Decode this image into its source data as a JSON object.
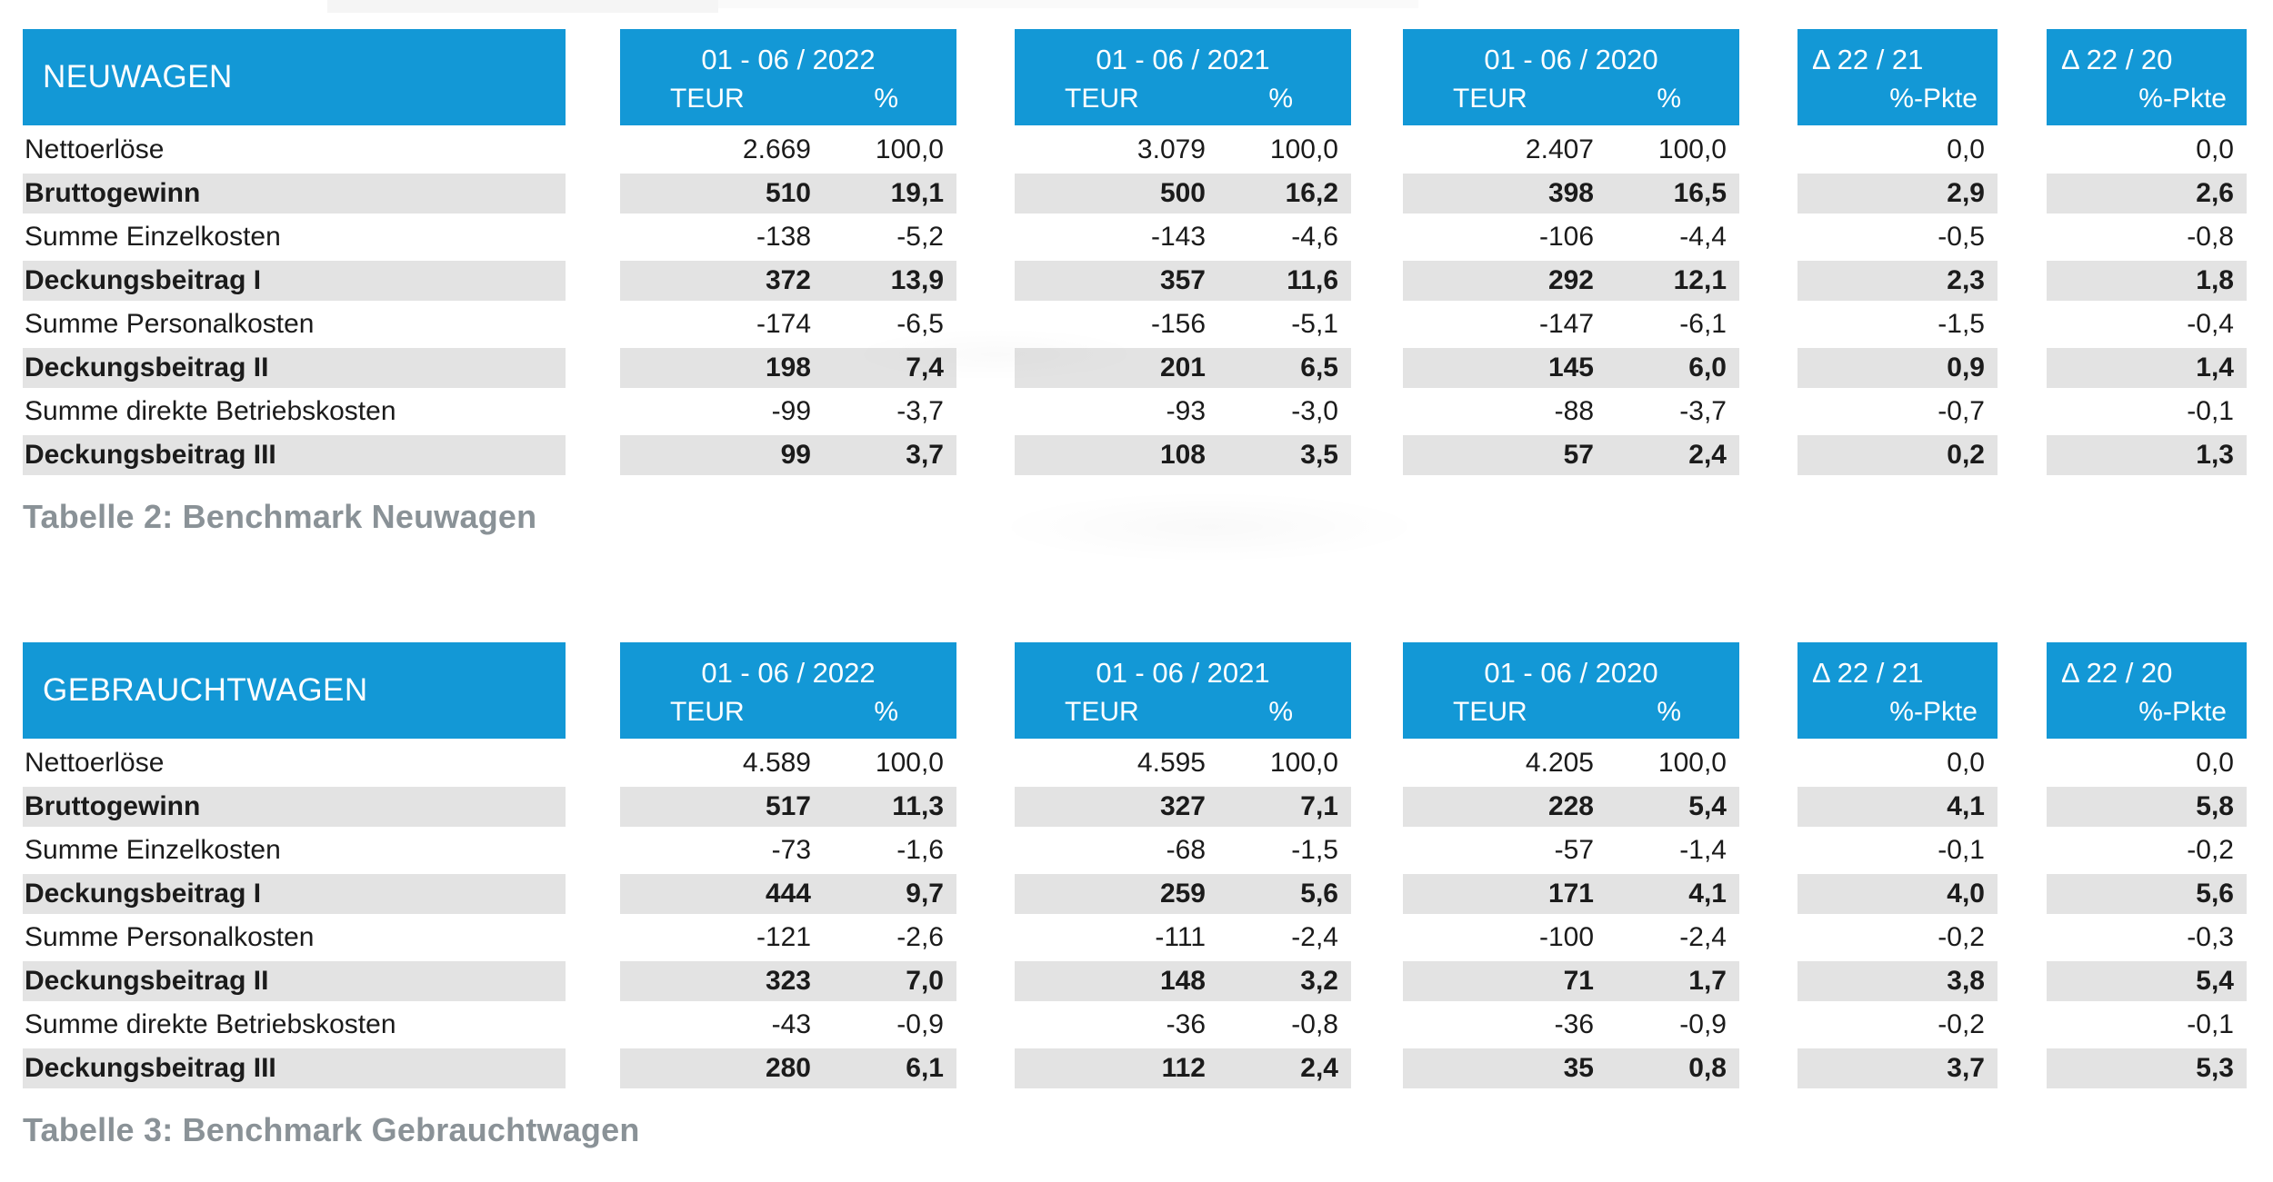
{
  "colors": {
    "accent": "#1398d6",
    "stripe": "#e3e3e3",
    "caption_text": "#8a9297",
    "body_text": "#1b1b1b"
  },
  "tables": [
    {
      "name": "NEUWAGEN",
      "caption": "Tabelle 2: Benchmark Neuwagen",
      "columns": [
        {
          "period": "01 - 06 / 2022",
          "units": [
            "TEUR",
            "%"
          ]
        },
        {
          "period": "01 - 06 / 2021",
          "units": [
            "TEUR",
            "%"
          ]
        },
        {
          "period": "01 - 06 / 2020",
          "units": [
            "TEUR",
            "%"
          ]
        },
        {
          "period": "Δ 22 / 21",
          "units": [
            "%-Pkte"
          ]
        },
        {
          "period": "Δ 22 / 20",
          "units": [
            "%-Pkte"
          ]
        }
      ],
      "rows": [
        {
          "label": "Nettoerlöse",
          "bold": false,
          "values": [
            "2.669",
            "100,0",
            "3.079",
            "100,0",
            "2.407",
            "100,0",
            "0,0",
            "0,0"
          ]
        },
        {
          "label": "Bruttogewinn",
          "bold": true,
          "values": [
            "510",
            "19,1",
            "500",
            "16,2",
            "398",
            "16,5",
            "2,9",
            "2,6"
          ]
        },
        {
          "label": "Summe Einzelkosten",
          "bold": false,
          "values": [
            "-138",
            "-5,2",
            "-143",
            "-4,6",
            "-106",
            "-4,4",
            "-0,5",
            "-0,8"
          ]
        },
        {
          "label": "Deckungsbeitrag I",
          "bold": true,
          "values": [
            "372",
            "13,9",
            "357",
            "11,6",
            "292",
            "12,1",
            "2,3",
            "1,8"
          ]
        },
        {
          "label": "Summe Personalkosten",
          "bold": false,
          "values": [
            "-174",
            "-6,5",
            "-156",
            "-5,1",
            "-147",
            "-6,1",
            "-1,5",
            "-0,4"
          ]
        },
        {
          "label": "Deckungsbeitrag II",
          "bold": true,
          "values": [
            "198",
            "7,4",
            "201",
            "6,5",
            "145",
            "6,0",
            "0,9",
            "1,4"
          ]
        },
        {
          "label": "Summe direkte Betriebskosten",
          "bold": false,
          "values": [
            "-99",
            "-3,7",
            "-93",
            "-3,0",
            "-88",
            "-3,7",
            "-0,7",
            "-0,1"
          ]
        },
        {
          "label": "Deckungsbeitrag III",
          "bold": true,
          "values": [
            "99",
            "3,7",
            "108",
            "3,5",
            "57",
            "2,4",
            "0,2",
            "1,3"
          ]
        }
      ]
    },
    {
      "name": "GEBRAUCHTWAGEN",
      "caption": "Tabelle 3: Benchmark Gebrauchtwagen",
      "columns": [
        {
          "period": "01 - 06 / 2022",
          "units": [
            "TEUR",
            "%"
          ]
        },
        {
          "period": "01 - 06 / 2021",
          "units": [
            "TEUR",
            "%"
          ]
        },
        {
          "period": "01 - 06 / 2020",
          "units": [
            "TEUR",
            "%"
          ]
        },
        {
          "period": "Δ 22 / 21",
          "units": [
            "%-Pkte"
          ]
        },
        {
          "period": "Δ 22 / 20",
          "units": [
            "%-Pkte"
          ]
        }
      ],
      "rows": [
        {
          "label": "Nettoerlöse",
          "bold": false,
          "values": [
            "4.589",
            "100,0",
            "4.595",
            "100,0",
            "4.205",
            "100,0",
            "0,0",
            "0,0"
          ]
        },
        {
          "label": "Bruttogewinn",
          "bold": true,
          "values": [
            "517",
            "11,3",
            "327",
            "7,1",
            "228",
            "5,4",
            "4,1",
            "5,8"
          ]
        },
        {
          "label": "Summe Einzelkosten",
          "bold": false,
          "values": [
            "-73",
            "-1,6",
            "-68",
            "-1,5",
            "-57",
            "-1,4",
            "-0,1",
            "-0,2"
          ]
        },
        {
          "label": "Deckungsbeitrag I",
          "bold": true,
          "values": [
            "444",
            "9,7",
            "259",
            "5,6",
            "171",
            "4,1",
            "4,0",
            "5,6"
          ]
        },
        {
          "label": "Summe Personalkosten",
          "bold": false,
          "values": [
            "-121",
            "-2,6",
            "-111",
            "-2,4",
            "-100",
            "-2,4",
            "-0,2",
            "-0,3"
          ]
        },
        {
          "label": "Deckungsbeitrag II",
          "bold": true,
          "values": [
            "323",
            "7,0",
            "148",
            "3,2",
            "71",
            "1,7",
            "3,8",
            "5,4"
          ]
        },
        {
          "label": "Summe direkte Betriebskosten",
          "bold": false,
          "values": [
            "-43",
            "-0,9",
            "-36",
            "-0,8",
            "-36",
            "-0,9",
            "-0,2",
            "-0,1"
          ]
        },
        {
          "label": "Deckungsbeitrag III",
          "bold": true,
          "values": [
            "280",
            "6,1",
            "112",
            "2,4",
            "35",
            "0,8",
            "3,7",
            "5,3"
          ]
        }
      ]
    }
  ]
}
